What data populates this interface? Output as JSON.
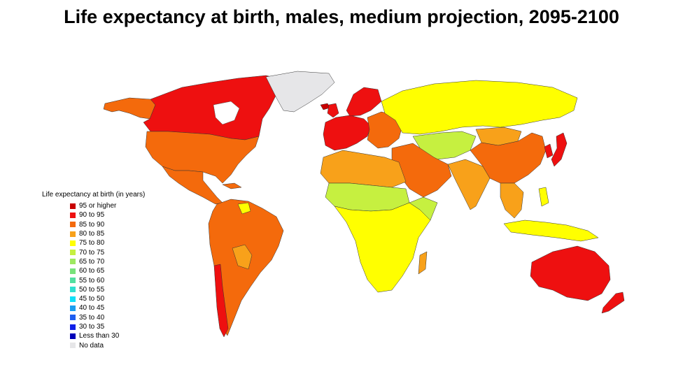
{
  "title": "Life expectancy at birth, males, medium projection, 2095-2100",
  "legend": {
    "title": "Life expectancy at birth (in years)",
    "items": [
      {
        "label": "95 or higher",
        "color": "#c80000"
      },
      {
        "label": "90 to 95",
        "color": "#ee1010"
      },
      {
        "label": "85 to 90",
        "color": "#f46a0c"
      },
      {
        "label": "80 to 85",
        "color": "#f8a11a"
      },
      {
        "label": "75 to 80",
        "color": "#ffff00"
      },
      {
        "label": "70 to 75",
        "color": "#c6f040"
      },
      {
        "label": "65 to 70",
        "color": "#9ee860"
      },
      {
        "label": "60 to 65",
        "color": "#78e27a"
      },
      {
        "label": "55 to 60",
        "color": "#52dfa0"
      },
      {
        "label": "50 to 55",
        "color": "#30e0d0"
      },
      {
        "label": "45 to 50",
        "color": "#10e0f8"
      },
      {
        "label": "40 to 45",
        "color": "#1a9ef0"
      },
      {
        "label": "35 to 40",
        "color": "#1e5ef0"
      },
      {
        "label": "30 to 35",
        "color": "#1020e8"
      },
      {
        "label": "Less than 30",
        "color": "#0000b8"
      },
      {
        "label": "No data",
        "color": "#e6e6e8"
      }
    ]
  },
  "regions": [
    {
      "name": "Canada",
      "legend_class": "90 to 95"
    },
    {
      "name": "Alaska",
      "legend_class": "85 to 90"
    },
    {
      "name": "United States",
      "legend_class": "85 to 90"
    },
    {
      "name": "Greenland",
      "legend_class": "No data"
    },
    {
      "name": "Mexico and Central America",
      "legend_class": "85 to 90"
    },
    {
      "name": "South America",
      "legend_class": "85 to 90"
    },
    {
      "name": "Chile",
      "legend_class": "90 to 95"
    },
    {
      "name": "Bolivia and Paraguay",
      "legend_class": "80 to 85"
    },
    {
      "name": "Western Europe",
      "legend_class": "90 to 95"
    },
    {
      "name": "Scandinavia",
      "legend_class": "90 to 95"
    },
    {
      "name": "Eastern Europe",
      "legend_class": "85 to 90"
    },
    {
      "name": "Russia",
      "legend_class": "75 to 80"
    },
    {
      "name": "North Africa",
      "legend_class": "80 to 85"
    },
    {
      "name": "Sub-Saharan Africa",
      "legend_class": "75 to 80"
    },
    {
      "name": "Sahel",
      "legend_class": "70 to 75"
    },
    {
      "name": "Middle East",
      "legend_class": "85 to 90"
    },
    {
      "name": "Central Asia",
      "legend_class": "70 to 75"
    },
    {
      "name": "India",
      "legend_class": "80 to 85"
    },
    {
      "name": "China",
      "legend_class": "85 to 90"
    },
    {
      "name": "Mongolia",
      "legend_class": "80 to 85"
    },
    {
      "name": "Japan",
      "legend_class": "90 to 95"
    },
    {
      "name": "Southeast Asia",
      "legend_class": "80 to 85"
    },
    {
      "name": "Indonesia",
      "legend_class": "75 to 80"
    },
    {
      "name": "Australia",
      "legend_class": "90 to 95"
    },
    {
      "name": "New Zealand",
      "legend_class": "90 to 95"
    },
    {
      "name": "Madagascar",
      "legend_class": "80 to 85"
    }
  ]
}
